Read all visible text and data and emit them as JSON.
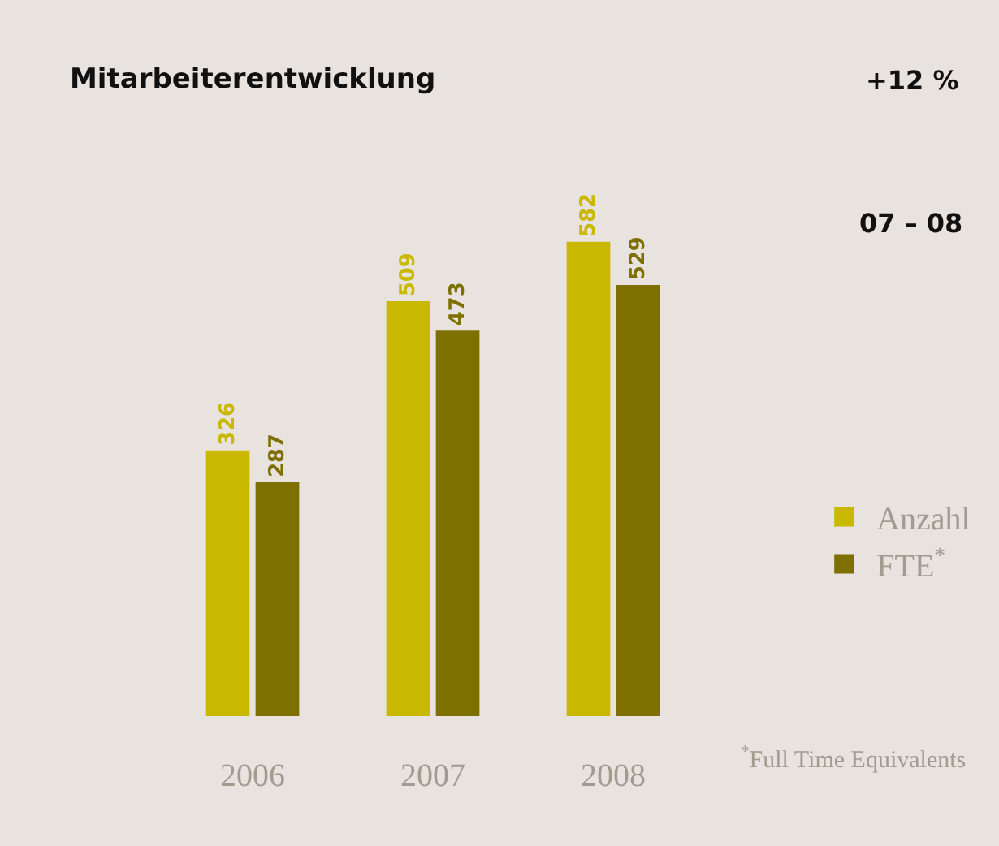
{
  "chart_data": {
    "type": "bar",
    "title": "Mitarbeiterentwicklung",
    "categories": [
      "2006",
      "2007",
      "2008"
    ],
    "series": [
      {
        "name": "Anzahl",
        "color": "#c9b800",
        "values": [
          326,
          509,
          582
        ]
      },
      {
        "name": "FTE$^{*}$",
        "color": "#7d7000",
        "values": [
          287,
          473,
          529
        ]
      }
    ],
    "data_labels": true,
    "legend": "bottom right",
    "grid": false,
    "annotations": [
      "+12 %",
      "07 – 08",
      "$^{*}$Full Time Equivalents"
    ]
  }
}
